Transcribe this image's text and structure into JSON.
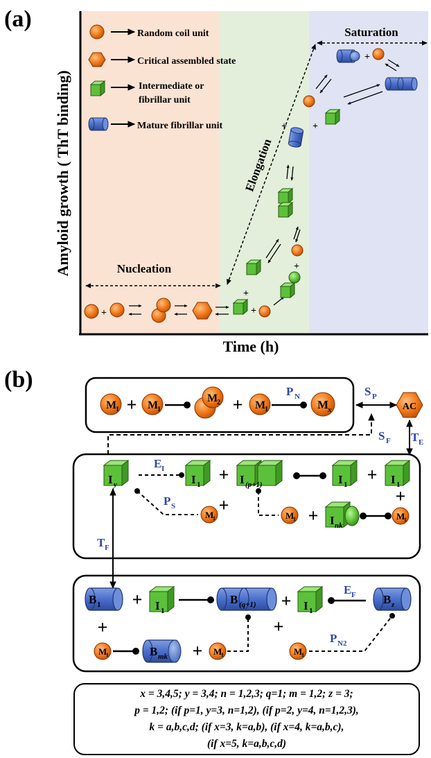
{
  "panel_a": {
    "label": "(a)",
    "y_axis_label": "Amyloid growth ( ThT binding)",
    "x_axis_label": "Time (h)",
    "legend": [
      {
        "icon": "orange-sphere-icon",
        "text": "Random coil unit"
      },
      {
        "icon": "orange-hexagon-icon",
        "text": "Critical assembled state"
      },
      {
        "icon": "green-cube-icon",
        "text": "Intermediate or"
      },
      {
        "icon": "green-cube-icon",
        "text": "fibrillar unit"
      },
      {
        "icon": "blue-cylinder-icon",
        "text": "Mature fibrillar unit"
      }
    ],
    "phases": {
      "nucleation": "Nucleation",
      "elongation": "Elongation",
      "saturation": "Saturation"
    },
    "plus": "+",
    "colors": {
      "nucleation_bg": "#fbe3d3",
      "elongation_bg": "#e3eedb",
      "saturation_bg": "#dfe3f3"
    }
  },
  "panel_b": {
    "label": "(b)",
    "box1": {
      "m1": "M",
      "m1_sub": "1",
      "m2": "M",
      "m2_sub": "2",
      "mx": "M",
      "mx_sub": "x",
      "rate_pn": "P",
      "rate_pn_sub": "N"
    },
    "ac": "AC",
    "rates": {
      "sp": "S",
      "sp_sub": "P",
      "sf": "S",
      "sf_sub": "F",
      "te": "T",
      "te_sub": "E",
      "tf": "T",
      "tf_sub": "F",
      "ei": "E",
      "ei_sub": "I",
      "ps": "P",
      "ps_sub": "S",
      "ef": "E",
      "ef_sub": "F",
      "pn2": "P",
      "pn2_sub": "N2"
    },
    "box2": {
      "iy": "I",
      "iy_sub": "y",
      "i1": "I",
      "i1_sub": "1",
      "ip1": "I",
      "ip1_sub": "(p+1)",
      "ink": "I",
      "ink_sub": "nk",
      "m1": "M",
      "m1_sub": "1"
    },
    "box3": {
      "b1": "B",
      "b1_sub": "1",
      "i1": "I",
      "i1_sub": "1",
      "bq1": "B",
      "bq1_sub": "(q+1)",
      "bz": "B",
      "bz_sub": "z",
      "bmk": "B",
      "bmk_sub": "mk",
      "m1": "M",
      "m1_sub": "1"
    },
    "conditions": [
      "x = 3,4,5;  y = 3,4; n = 1,2,3; q=1; m = 1,2; z = 3;",
      "p = 1,2;  (if p=1, y=3, n=1,2), (if p=2, y=4, n=1,2,3),",
      "k = a,b,c,d; (if x=3, k=a,b), (if x=4, k=a,b,c),",
      "(if x=5, k=a,b,c,d)"
    ]
  }
}
